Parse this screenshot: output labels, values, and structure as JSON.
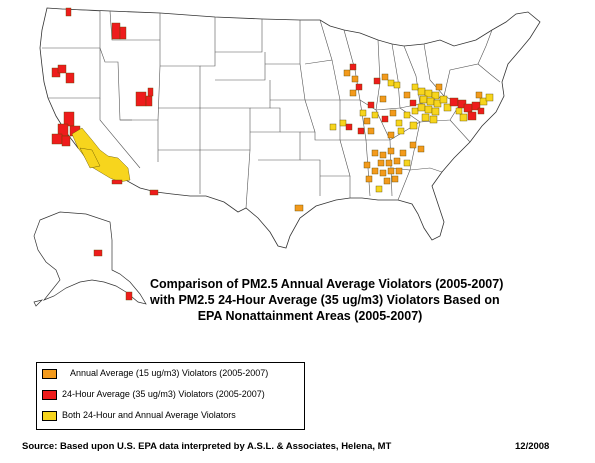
{
  "title": {
    "line1": "Comparison of PM2.5 Annual Average Violators (2005-2007)",
    "line2": "with PM2.5 24-Hour Average (35 ug/m3) Violators Based on",
    "line3": "EPA Nonattainment Areas (2005-2007)"
  },
  "legend": {
    "items": [
      {
        "label": "Annual Average (15 ug/m3) Violators (2005-2007)",
        "color": "#f39a1c"
      },
      {
        "label": "24-Hour Average (35 ug/m3) Violators (2005-2007)",
        "color": "#ee1c1c"
      },
      {
        "label": "Both 24-Hour and Annual Average Violators",
        "color": "#f7d51d"
      }
    ]
  },
  "source": "Source: Based upon U.S. EPA data interpreted by A.S.L. & Associates, Helena, MT",
  "date": "12/2008",
  "colors": {
    "annual": "#f39a1c",
    "daily": "#ee1c1c",
    "both": "#f7d51d",
    "state_fill": "#ffffff",
    "state_border": "#333333",
    "county_border": "#5a4a00"
  }
}
